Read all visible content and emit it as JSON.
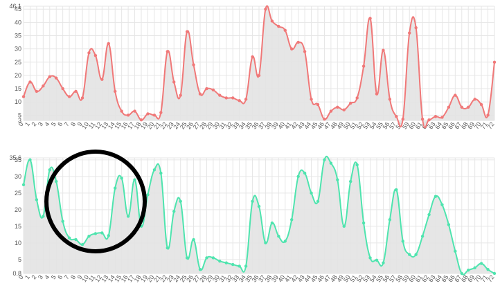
{
  "chart_data": [
    {
      "type": "area",
      "title": "",
      "xlabel": "",
      "ylabel": "",
      "x": [
        0,
        1,
        2,
        3,
        4,
        5,
        6,
        7,
        8,
        9,
        10,
        11,
        12,
        13,
        14,
        15,
        16,
        17,
        18,
        19,
        20,
        21,
        22,
        23,
        24,
        25,
        26,
        27,
        28,
        29,
        30,
        31,
        32,
        33,
        34,
        35,
        36,
        37,
        38,
        39,
        40,
        41,
        42,
        43,
        44,
        45,
        46,
        47,
        48,
        49,
        50,
        51,
        52,
        53,
        54,
        55,
        56,
        57,
        58,
        59,
        60,
        61,
        62,
        63,
        64,
        65,
        66,
        67,
        68,
        69,
        70,
        71,
        72
      ],
      "series": [
        {
          "values": [
            12,
            17.5,
            14,
            16,
            19.5,
            19,
            15,
            12,
            14,
            11.5,
            28.5,
            27.5,
            18.5,
            32,
            14,
            6.5,
            5,
            6.5,
            3.2,
            5.5,
            5,
            6,
            29,
            17.5,
            12.5,
            36.5,
            24,
            13,
            15,
            14.5,
            12.5,
            11.5,
            11.5,
            10.5,
            11,
            27,
            20,
            45,
            40.5,
            38.5,
            37,
            30,
            32.5,
            29,
            11,
            9,
            3.5,
            6.5,
            8,
            7,
            9.5,
            11.5,
            23.5,
            41.5,
            13,
            29.5,
            11,
            4.5,
            3.5,
            36,
            38,
            3.5,
            3.2,
            4.5,
            4.2,
            8,
            12.5,
            8,
            8,
            11,
            9,
            5,
            25
          ],
          "color": "#f07878"
        }
      ],
      "y_ticks": [
        "3",
        "5",
        "10",
        "15",
        "20",
        "25",
        "30",
        "35",
        "40",
        "45",
        "46.1"
      ],
      "ylim": [
        3,
        46.1
      ],
      "grid": true,
      "fill_color": "#e3e3e3"
    },
    {
      "type": "area",
      "title": "",
      "xlabel": "",
      "ylabel": "",
      "x": [
        0,
        1,
        2,
        3,
        4,
        5,
        6,
        7,
        8,
        9,
        10,
        11,
        12,
        13,
        14,
        15,
        16,
        17,
        18,
        19,
        20,
        21,
        22,
        23,
        24,
        25,
        26,
        27,
        28,
        29,
        30,
        31,
        32,
        33,
        34,
        35,
        36,
        37,
        38,
        39,
        40,
        41,
        42,
        43,
        44,
        45,
        46,
        47,
        48,
        49,
        50,
        51,
        52,
        53,
        54,
        55,
        56,
        57,
        58,
        59,
        60,
        61,
        62,
        63,
        64,
        65,
        66,
        67,
        68,
        69,
        70,
        71,
        72
      ],
      "series": [
        {
          "values": [
            27.5,
            35,
            23,
            18,
            32,
            28.5,
            16.5,
            11.5,
            11,
            9.5,
            12,
            12.8,
            13,
            12.2,
            26.5,
            29.5,
            18,
            29,
            15,
            24.5,
            32,
            31,
            8.5,
            19.5,
            22.5,
            5.5,
            11,
            2,
            5.5,
            5.5,
            4.5,
            4,
            3.5,
            3,
            3,
            22.5,
            21,
            10,
            16,
            12,
            10.5,
            17,
            30,
            31,
            25,
            22.5,
            35,
            34,
            29,
            15,
            28.5,
            33.5,
            16,
            5.5,
            4.8,
            4,
            17,
            26,
            10.5,
            6.5,
            6.5,
            12,
            18.5,
            24,
            21.5,
            15.5,
            7.5,
            0.8,
            1.8,
            2.5,
            3.8,
            2,
            0.8
          ],
          "color": "#4ee4ae"
        }
      ],
      "y_ticks": [
        "0.8",
        "5",
        "10",
        "15",
        "20",
        "25",
        "30",
        "35",
        "35.6"
      ],
      "ylim": [
        0.8,
        35.6
      ],
      "grid": true,
      "fill_color": "#e3e3e3"
    }
  ],
  "annotation": {
    "shape": "circle",
    "color": "#000000"
  }
}
